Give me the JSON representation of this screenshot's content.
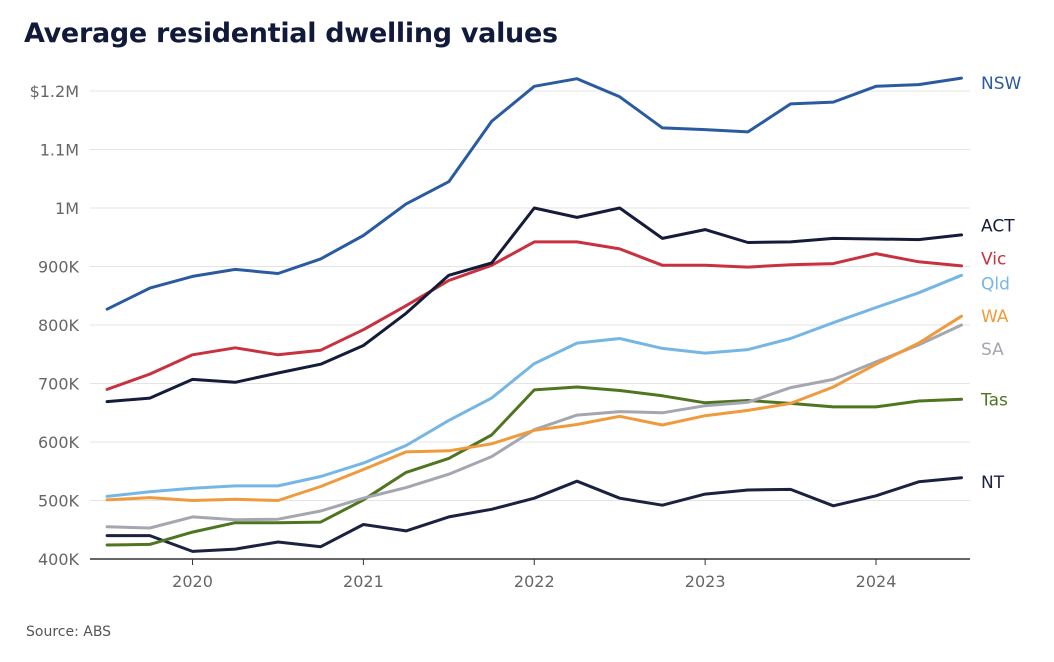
{
  "colors": {
    "NSW": "#2a5aa0",
    "ACT": "#141c3a",
    "Vic": "#c8313e",
    "Qld": "#76b6e4",
    "WA": "#ef9a3d",
    "SA": "#a4a6b0",
    "Tas": "#4f7520",
    "NT": "#1b2240"
  },
  "chart_data": {
    "type": "line",
    "title": "Average residential dwelling values",
    "source": "Source: ABS",
    "xlabel": "",
    "ylabel": "",
    "ylim": [
      400,
      1250
    ],
    "yticks": [
      {
        "value": 400,
        "label": "400K"
      },
      {
        "value": 500,
        "label": "500K"
      },
      {
        "value": 600,
        "label": "600K"
      },
      {
        "value": 700,
        "label": "700K"
      },
      {
        "value": 800,
        "label": "800K"
      },
      {
        "value": 900,
        "label": "900K"
      },
      {
        "value": 1000,
        "label": "1M"
      },
      {
        "value": 1100,
        "label": "1.1M"
      },
      {
        "value": 1200,
        "label": "$1.2M"
      }
    ],
    "xlim": [
      2019.4,
      2024.55
    ],
    "xticks": [
      {
        "value": 2020.0,
        "label": "2020"
      },
      {
        "value": 2021.0,
        "label": "2021"
      },
      {
        "value": 2022.0,
        "label": "2022"
      },
      {
        "value": 2023.0,
        "label": "2023"
      },
      {
        "value": 2024.0,
        "label": "2024"
      }
    ],
    "x": [
      2019.5,
      2019.75,
      2020.0,
      2020.25,
      2020.5,
      2020.75,
      2021.0,
      2021.25,
      2021.5,
      2021.75,
      2022.0,
      2022.25,
      2022.5,
      2022.75,
      2023.0,
      2023.25,
      2023.5,
      2023.75,
      2024.0,
      2024.25,
      2024.5
    ],
    "series": [
      {
        "name": "NSW",
        "values": [
          827,
          863,
          883,
          895,
          888,
          913,
          953,
          1007,
          1045,
          1148,
          1208,
          1221,
          1190,
          1137,
          1134,
          1130,
          1178,
          1181,
          1208,
          1211,
          1222
        ]
      },
      {
        "name": "ACT",
        "values": [
          669,
          675,
          707,
          702,
          718,
          733,
          765,
          820,
          885,
          906,
          1000,
          984,
          1000,
          948,
          963,
          941,
          942,
          948,
          947,
          946,
          954
        ]
      },
      {
        "name": "Vic",
        "values": [
          690,
          716,
          749,
          761,
          749,
          757,
          792,
          833,
          876,
          902,
          942,
          942,
          930,
          902,
          902,
          899,
          903,
          905,
          922,
          908,
          901
        ]
      },
      {
        "name": "Qld",
        "values": [
          507,
          515,
          521,
          525,
          525,
          541,
          564,
          594,
          637,
          675,
          734,
          769,
          777,
          760,
          752,
          758,
          777,
          804,
          830,
          855,
          885
        ]
      },
      {
        "name": "WA",
        "values": [
          501,
          505,
          500,
          502,
          500,
          524,
          553,
          583,
          585,
          597,
          620,
          630,
          644,
          629,
          645,
          654,
          666,
          694,
          733,
          769,
          815
        ]
      },
      {
        "name": "SA",
        "values": [
          455,
          453,
          472,
          467,
          468,
          482,
          504,
          522,
          545,
          575,
          621,
          646,
          652,
          650,
          662,
          668,
          693,
          707,
          737,
          766,
          800
        ]
      },
      {
        "name": "Tas",
        "values": [
          424,
          425,
          446,
          462,
          462,
          463,
          501,
          548,
          572,
          612,
          689,
          694,
          688,
          679,
          667,
          671,
          666,
          660,
          660,
          670,
          673
        ]
      },
      {
        "name": "NT",
        "values": [
          440,
          440,
          413,
          417,
          429,
          421,
          459,
          448,
          472,
          485,
          504,
          533,
          504,
          492,
          511,
          518,
          519,
          491,
          508,
          532,
          539
        ]
      }
    ],
    "end_label_positions": [
      {
        "name": "NSW",
        "label": "NSW",
        "value": 1214
      },
      {
        "name": "ACT",
        "label": "ACT",
        "value": 970
      },
      {
        "name": "Vic",
        "label": "Vic",
        "value": 914
      },
      {
        "name": "Qld",
        "label": "Qld",
        "value": 871
      },
      {
        "name": "WA",
        "label": "WA",
        "value": 815
      },
      {
        "name": "SA",
        "label": "SA",
        "value": 759
      },
      {
        "name": "Tas",
        "label": "Tas",
        "value": 673
      },
      {
        "name": "NT",
        "label": "NT",
        "value": 532
      }
    ]
  }
}
